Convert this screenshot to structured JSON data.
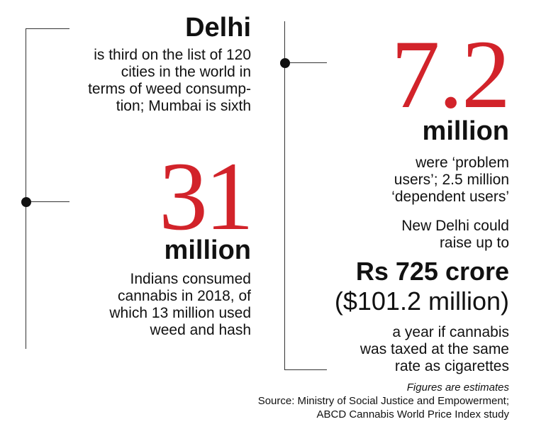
{
  "left": {
    "delhi": {
      "heading": "Delhi",
      "lines": [
        "is third on the list of 120",
        "cities in the world in",
        "terms of weed consump-",
        "tion; Mumbai is sixth"
      ]
    },
    "stat31": {
      "number": "31",
      "unit": "million",
      "lines": [
        "Indians consumed",
        "cannabis in 2018, of",
        "which 13 million used",
        "weed and hash"
      ]
    }
  },
  "right": {
    "stat72": {
      "number": "7.2",
      "unit": "million",
      "lines": [
        "were ‘problem",
        "users’; 2.5 million",
        "‘dependent users’"
      ]
    },
    "tax": {
      "intro": [
        "New Delhi could",
        "raise up to"
      ],
      "amount": "Rs 725 crore",
      "amount_usd": "($101.2 million)",
      "lines": [
        "a year if cannabis",
        "was taxed at the same",
        "rate as cigarettes"
      ]
    }
  },
  "footer": {
    "note": "Figures are estimates",
    "source1": "Source: Ministry of Social Justice and Empowerment;",
    "source2": "ABCD Cannabis World Price Index study"
  },
  "colors": {
    "accent": "#d2232a",
    "text": "#111111",
    "line": "#333333"
  }
}
